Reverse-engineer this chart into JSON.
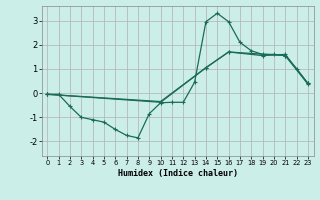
{
  "xlabel": "Humidex (Indice chaleur)",
  "bg_color": "#cceee8",
  "grid_color": "#b0b0b0",
  "line_color": "#1a6b5a",
  "xlim": [
    -0.5,
    23.5
  ],
  "ylim": [
    -2.6,
    3.6
  ],
  "yticks": [
    -2,
    -1,
    0,
    1,
    2,
    3
  ],
  "xticks": [
    0,
    1,
    2,
    3,
    4,
    5,
    6,
    7,
    8,
    9,
    10,
    11,
    12,
    13,
    14,
    15,
    16,
    17,
    18,
    19,
    20,
    21,
    22,
    23
  ],
  "line1_x": [
    0,
    1,
    2,
    3,
    4,
    5,
    6,
    7,
    8,
    9,
    10,
    11,
    12,
    13,
    14,
    15,
    16,
    17,
    18,
    19,
    20,
    21,
    22,
    23
  ],
  "line1_y": [
    -0.05,
    -0.05,
    -0.55,
    -1.0,
    -1.1,
    -1.2,
    -1.5,
    -1.75,
    -1.85,
    -0.85,
    -0.4,
    -0.38,
    -0.38,
    0.45,
    2.95,
    3.3,
    2.95,
    2.1,
    1.75,
    1.6,
    1.6,
    1.55,
    1.0,
    0.4
  ],
  "line2_x": [
    0,
    10,
    14,
    16,
    19,
    21,
    23
  ],
  "line2_y": [
    -0.05,
    -0.35,
    1.05,
    1.7,
    1.55,
    1.6,
    0.4
  ],
  "line3_x": [
    0,
    10,
    14,
    16,
    21,
    23
  ],
  "line3_y": [
    -0.05,
    -0.38,
    1.05,
    1.7,
    1.55,
    0.37
  ]
}
